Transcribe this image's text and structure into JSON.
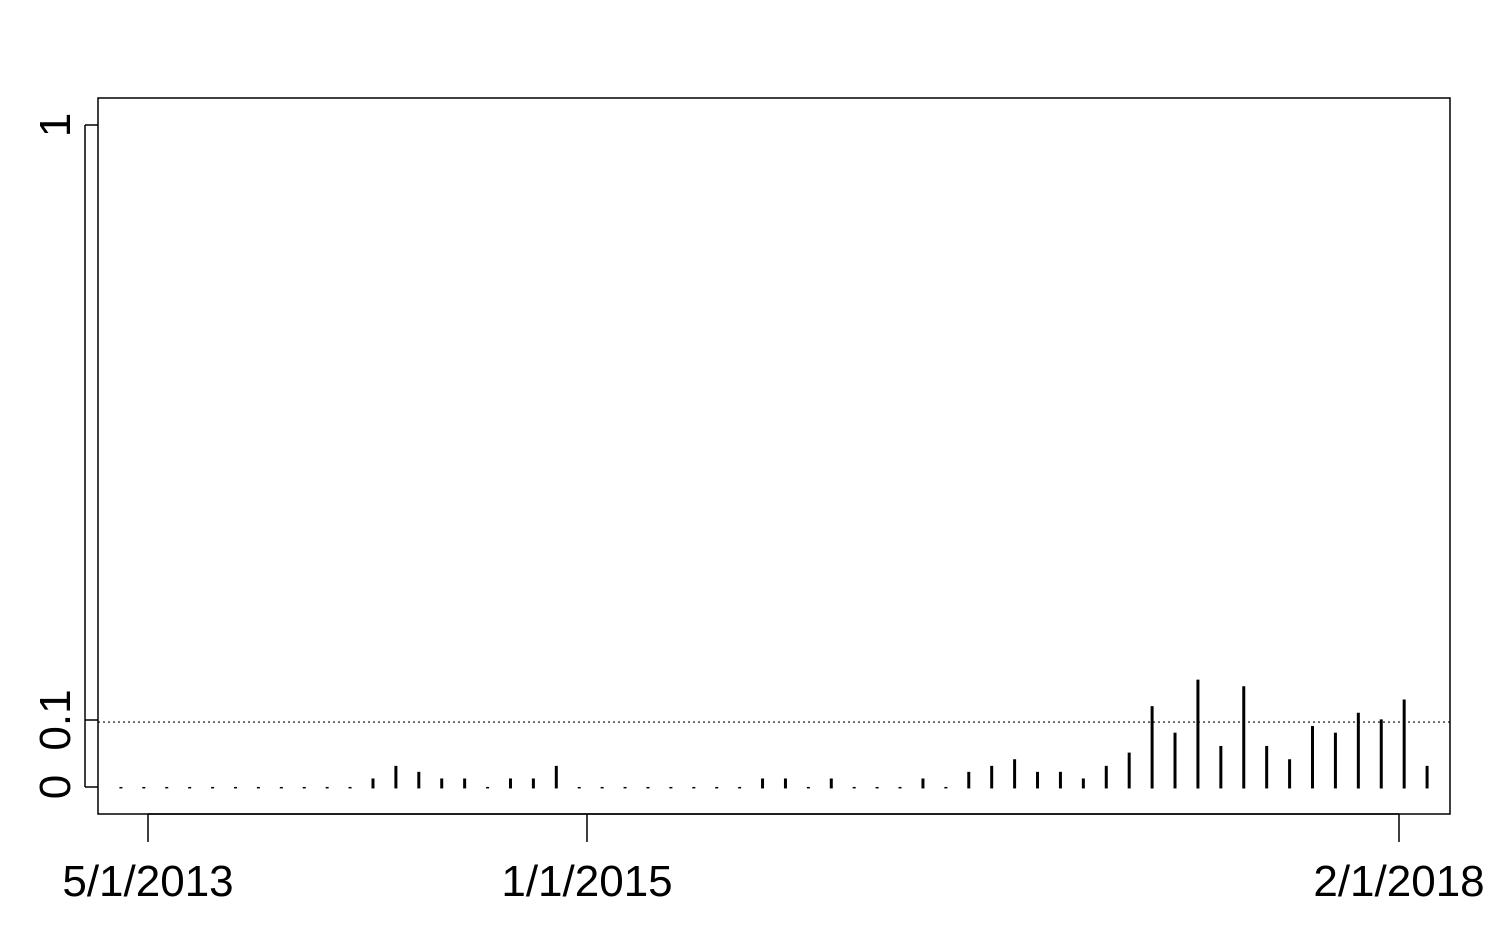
{
  "chart_data": {
    "type": "bar",
    "title": "",
    "xlabel": "",
    "ylabel": "",
    "x_range": [
      "2013-04-01",
      "2018-03-01"
    ],
    "ylim": [
      -0.0385,
      1.04
    ],
    "x_ticks": [
      {
        "date": "2013-05-01",
        "label": "5/1/2013"
      },
      {
        "date": "2015-01-01",
        "label": "1/1/2015"
      },
      {
        "date": "2018-02-01",
        "label": "2/1/2018"
      }
    ],
    "y_ticks": [
      {
        "value": 0,
        "label": "0"
      },
      {
        "value": 0.1,
        "label": "0.1"
      },
      {
        "value": 1,
        "label": "1"
      }
    ],
    "reference_line": {
      "y": 0.1,
      "style": "dotted"
    },
    "grid": false,
    "legend": "none",
    "series": [
      {
        "x": [
          "2013-05-01",
          "2013-06-01",
          "2013-07-01",
          "2013-08-01",
          "2013-09-01",
          "2013-10-01",
          "2013-11-01",
          "2013-12-01",
          "2014-01-01",
          "2014-02-01",
          "2014-03-01",
          "2014-04-01",
          "2014-05-01",
          "2014-06-01",
          "2014-07-01",
          "2014-08-01",
          "2014-09-01",
          "2014-10-01",
          "2014-11-01",
          "2014-12-01",
          "2015-01-01",
          "2015-02-01",
          "2015-03-01",
          "2015-04-01",
          "2015-05-01",
          "2015-06-01",
          "2015-07-01",
          "2015-08-01",
          "2015-09-01",
          "2015-10-01",
          "2015-11-01",
          "2015-12-01",
          "2016-01-01",
          "2016-02-01",
          "2016-03-01",
          "2016-04-01",
          "2016-05-01",
          "2016-06-01",
          "2016-07-01",
          "2016-08-01",
          "2016-09-01",
          "2016-10-01",
          "2016-11-01",
          "2016-12-01",
          "2017-01-01",
          "2017-02-01",
          "2017-03-01",
          "2017-04-01",
          "2017-05-01",
          "2017-06-01",
          "2017-07-01",
          "2017-08-01",
          "2017-09-01",
          "2017-10-01",
          "2017-11-01",
          "2017-12-01",
          "2018-01-01",
          "2018-02-01"
        ],
        "y": [
          0.0,
          0.0,
          0.0,
          0.0,
          0.0,
          0.0,
          0.0,
          0.0,
          0.0,
          0.0,
          0.0,
          0.015,
          0.034,
          0.025,
          0.015,
          0.015,
          0.0,
          0.015,
          0.015,
          0.034,
          0.0,
          0.0,
          0.0,
          0.0,
          0.0,
          0.0,
          0.0,
          0.0,
          0.015,
          0.015,
          0.0,
          0.015,
          0.0,
          0.0,
          0.0,
          0.015,
          0.0,
          0.025,
          0.034,
          0.044,
          0.025,
          0.025,
          0.015,
          0.034,
          0.054,
          0.124,
          0.084,
          0.164,
          0.064,
          0.154,
          0.064,
          0.044,
          0.094,
          0.084,
          0.114,
          0.104,
          0.134,
          0.034
        ]
      }
    ]
  }
}
